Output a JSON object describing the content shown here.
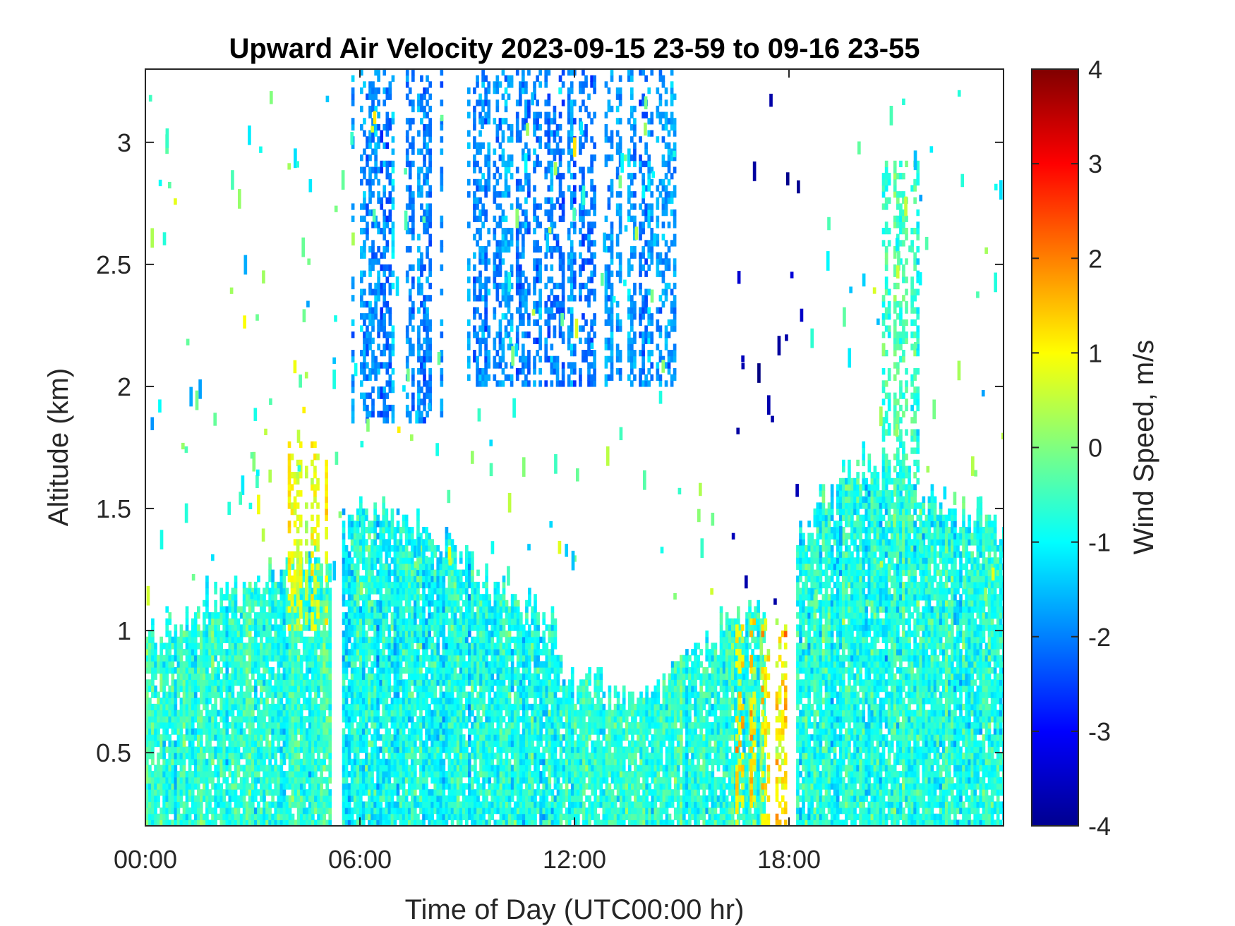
{
  "chart_data": {
    "type": "heatmap",
    "title": "Upward Air Velocity 2023-09-15 23-59 to 09-16 23-55",
    "xlabel": "Time of Day (UTC00:00 hr)",
    "ylabel": "Altitude (km)",
    "colorbar_label": "Wind Speed, m/s",
    "x_ticks": [
      {
        "value": 0,
        "label": "00:00"
      },
      {
        "value": 6,
        "label": "06:00"
      },
      {
        "value": 12,
        "label": "12:00"
      },
      {
        "value": 18,
        "label": "18:00"
      }
    ],
    "y_ticks": [
      {
        "value": 0.5,
        "label": "0.5"
      },
      {
        "value": 1,
        "label": "1"
      },
      {
        "value": 1.5,
        "label": "1.5"
      },
      {
        "value": 2,
        "label": "2"
      },
      {
        "value": 2.5,
        "label": "2.5"
      },
      {
        "value": 3,
        "label": "3"
      }
    ],
    "colorbar_ticks": [
      {
        "value": -4,
        "label": "-4"
      },
      {
        "value": -3,
        "label": "-3"
      },
      {
        "value": -2,
        "label": "-2"
      },
      {
        "value": -1,
        "label": "-1"
      },
      {
        "value": 0,
        "label": "0"
      },
      {
        "value": 1,
        "label": "1"
      },
      {
        "value": 2,
        "label": "2"
      },
      {
        "value": 3,
        "label": "3"
      },
      {
        "value": 4,
        "label": "4"
      }
    ],
    "xlim": [
      0,
      24
    ],
    "ylim": [
      0.2,
      3.3
    ],
    "clim": [
      -4,
      4
    ],
    "colormap": "jet",
    "grid": false,
    "regions": [
      {
        "name": "boundary-layer-night",
        "t": [
          0,
          5.2
        ],
        "alt_top": [
          0.95,
          1.1,
          1.2,
          1.3
        ],
        "mean": -0.7,
        "spread": 0.9
      },
      {
        "name": "cliff-band",
        "t": [
          3.9,
          5.1
        ],
        "alt": [
          1.0,
          1.75
        ],
        "mean": 0.8,
        "spread": 0.6
      },
      {
        "name": "boundary-layer-morning",
        "t": [
          5.5,
          11.5
        ],
        "alt_top": [
          1.45,
          1.45,
          1.2,
          1.0
        ],
        "mean": -0.9,
        "spread": 1.0
      },
      {
        "name": "upper-cloud-a",
        "t": [
          5.6,
          8.3
        ],
        "alt": [
          1.85,
          3.3
        ],
        "mean": -1.9,
        "spread": 0.7
      },
      {
        "name": "upper-cloud-b",
        "t": [
          9.0,
          14.8
        ],
        "alt": [
          2.0,
          3.3
        ],
        "mean": -1.9,
        "spread": 0.7
      },
      {
        "name": "boundary-layer-midday",
        "t": [
          11.5,
          17.3
        ],
        "alt_top": [
          0.85,
          0.7,
          0.9,
          1.1
        ],
        "mean": -0.7,
        "spread": 0.9
      },
      {
        "name": "updraft-afternoon",
        "t": [
          16.5,
          18.0
        ],
        "alt": [
          0.2,
          1.05
        ],
        "mean": 1.2,
        "spread": 1.1
      },
      {
        "name": "boundary-layer-evening",
        "t": [
          18.2,
          24
        ],
        "alt_top": [
          1.4,
          1.7,
          1.5,
          1.4
        ],
        "mean": -0.8,
        "spread": 1.0
      },
      {
        "name": "upper-plume-evening",
        "t": [
          20.6,
          21.6
        ],
        "alt": [
          1.5,
          2.9
        ],
        "mean": -0.5,
        "spread": 0.7
      }
    ]
  }
}
